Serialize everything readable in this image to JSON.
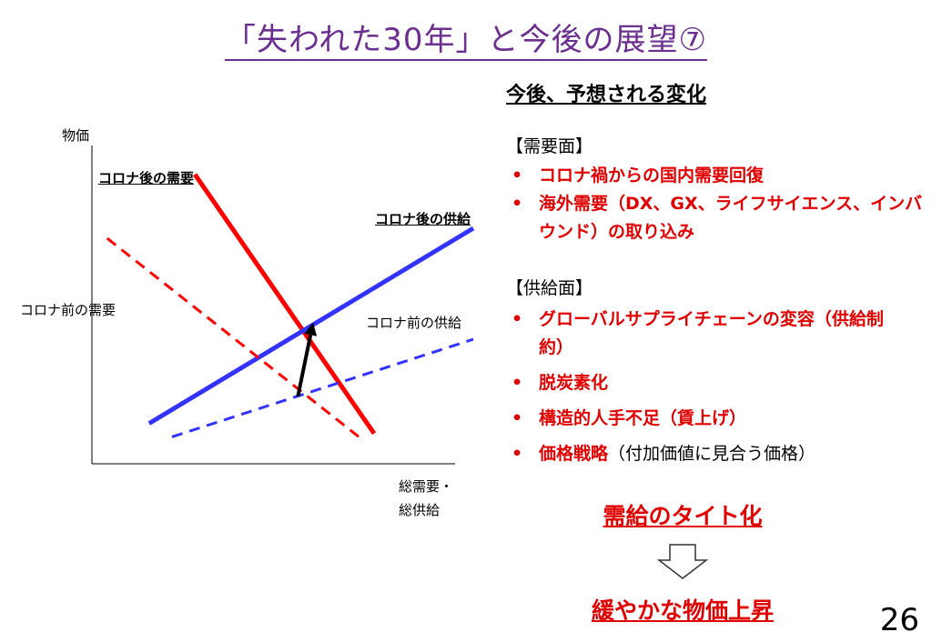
{
  "title": "「失われた30年」と今後の展望⑦",
  "chart": {
    "y_axis_label": "物価",
    "x_axis_label_line1": "総需要・",
    "x_axis_label_line2": "総供給",
    "label_demand_after": "コロナ後の需要",
    "label_supply_after": "コロナ後の供給",
    "label_demand_before": "コロナ前の需要",
    "label_supply_before": "コロナ前の供給"
  },
  "chart_data": {
    "type": "line",
    "xlabel": "総需要・総供給",
    "ylabel": "物価",
    "series": [
      {
        "name": "コロナ後の需要",
        "style": "solid",
        "color": "#ff0000",
        "points": [
          [
            0.27,
            0.86
          ],
          [
            0.74,
            0.09
          ]
        ]
      },
      {
        "name": "コロナ後の供給",
        "style": "solid",
        "color": "#3333ff",
        "points": [
          [
            0.15,
            0.12
          ],
          [
            1.0,
            0.7
          ]
        ]
      },
      {
        "name": "コロナ前の需要",
        "style": "dashed",
        "color": "#ff0000",
        "points": [
          [
            0.04,
            0.67
          ],
          [
            0.7,
            0.08
          ]
        ]
      },
      {
        "name": "コロナ前の供給",
        "style": "dashed",
        "color": "#3333ff",
        "points": [
          [
            0.21,
            0.08
          ],
          [
            1.0,
            0.37
          ]
        ]
      }
    ],
    "arrow": {
      "from": [
        0.54,
        0.2
      ],
      "to": [
        0.58,
        0.42
      ],
      "color": "#000000"
    },
    "grid": false
  },
  "right": {
    "heading": "今後、予想される変化",
    "demand_section": "【需要面】",
    "demand_items": [
      "コロナ禍からの国内需要回復",
      "海外需要（DX、GX、ライフサイエンス、インバウンド）の取り込み"
    ],
    "supply_section": "【供給面】",
    "supply_items": [
      "グローバルサプライチェーンの変容（供給制約）",
      "脱炭素化",
      "構造的人手不足（賃上げ）"
    ],
    "last_item_bold": "価格戦略",
    "last_item_normal": "（付加価値に見合う価格）",
    "conclusion1": "需給のタイト化",
    "conclusion2": "緩やかな物価上昇"
  },
  "page_number": "26"
}
